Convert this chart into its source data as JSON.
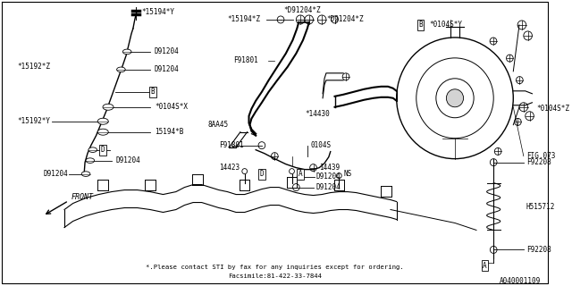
{
  "background_color": "#ffffff",
  "line_color": "#000000",
  "text_color": "#000000",
  "diagram_number": "A040001109",
  "footer_line1": "*.Please contact STI by fax for any inquiries except for ordering.",
  "footer_line2": "Facsimile:81-422-33-7844"
}
